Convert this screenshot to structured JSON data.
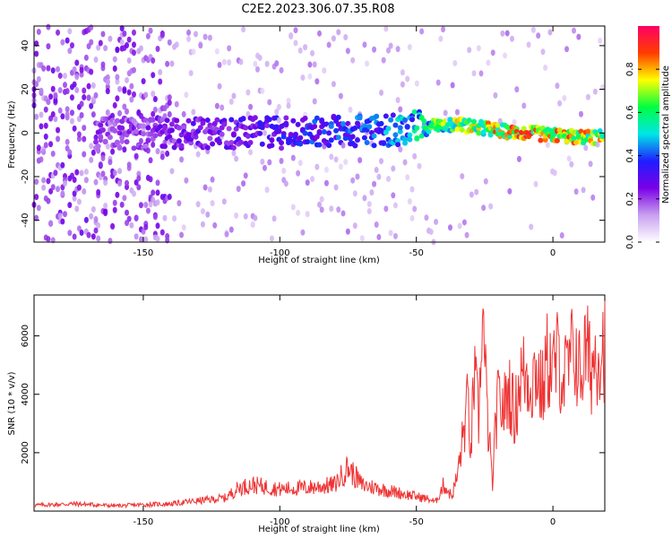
{
  "title": "C2E2.2023.306.07.35.R08",
  "chart_data": [
    {
      "type": "heatmap",
      "xlabel": "Height of straight line (km)",
      "ylabel": "Frequency (Hz)",
      "xlim": [
        -190,
        19
      ],
      "ylim": [
        -50,
        49
      ],
      "xticks": [
        -150,
        -100,
        -50,
        0
      ],
      "yticks": [
        -40,
        -20,
        0,
        20,
        40
      ],
      "colorbar": {
        "label": "Normalized spectral amplitude",
        "range": [
          0,
          1
        ],
        "ticks": [
          "0.0",
          "0.2",
          "0.4",
          "0.6",
          "0.8"
        ],
        "tick_values": [
          0,
          0.2,
          0.4,
          0.6,
          0.8
        ],
        "colors": [
          "#ffffff",
          "#c8a0f0",
          "#7a00e6",
          "#1e1eff",
          "#00e6e6",
          "#00ff40",
          "#ffff00",
          "#ff3c00",
          "#ff0064"
        ]
      },
      "ridge": [
        {
          "x": -160,
          "y": 0,
          "amp": 0.25
        },
        {
          "x": -140,
          "y": 0,
          "amp": 0.3
        },
        {
          "x": -120,
          "y": 0,
          "amp": 0.35
        },
        {
          "x": -100,
          "y": 0,
          "amp": 0.4
        },
        {
          "x": -80,
          "y": 1,
          "amp": 0.45
        },
        {
          "x": -60,
          "y": 1,
          "amp": 0.5
        },
        {
          "x": -45,
          "y": 4,
          "amp": 0.7
        },
        {
          "x": -35,
          "y": 4,
          "amp": 0.8
        },
        {
          "x": -20,
          "y": 1,
          "amp": 0.9
        },
        {
          "x": -10,
          "y": 0,
          "amp": 0.95
        },
        {
          "x": 0,
          "y": -1,
          "amp": 0.95
        },
        {
          "x": 10,
          "y": -2,
          "amp": 0.9
        },
        {
          "x": 19,
          "y": -2,
          "amp": 0.85
        }
      ]
    },
    {
      "type": "line",
      "xlabel": "Height of straight line (km)",
      "ylabel": "SNR (10 * v/v)",
      "xlim": [
        -190,
        19
      ],
      "ylim": [
        0,
        7400
      ],
      "xticks": [
        -150,
        -100,
        -50,
        0
      ],
      "yticks": [
        2000,
        4000,
        6000
      ],
      "series": [
        {
          "color": "#ee3333",
          "x": [
            -190,
            -175,
            -160,
            -150,
            -140,
            -130,
            -120,
            -115,
            -110,
            -100,
            -90,
            -80,
            -75,
            -70,
            -65,
            -60,
            -55,
            -50,
            -45,
            -43,
            -40,
            -37,
            -35,
            -33,
            -31,
            -30,
            -29,
            -27,
            -26,
            -25,
            -24,
            -23,
            -22,
            -21,
            -20,
            -18,
            -16,
            -14,
            -12,
            -10,
            -8,
            -6,
            -4,
            -2,
            0,
            2,
            4,
            6,
            8,
            10,
            12,
            14,
            16,
            19
          ],
          "y": [
            200,
            250,
            180,
            220,
            250,
            350,
            450,
            800,
            900,
            750,
            800,
            900,
            1500,
            900,
            800,
            700,
            600,
            500,
            400,
            300,
            900,
            500,
            1200,
            2500,
            3800,
            1800,
            4700,
            3000,
            7200,
            5200,
            3200,
            2000,
            800,
            3000,
            3800,
            3500,
            4200,
            3200,
            4600,
            4700,
            4400,
            4900,
            4000,
            5200,
            4800,
            5300,
            4500,
            5000,
            5600,
            4600,
            5500,
            4900,
            5500,
            5700
          ]
        }
      ]
    }
  ]
}
